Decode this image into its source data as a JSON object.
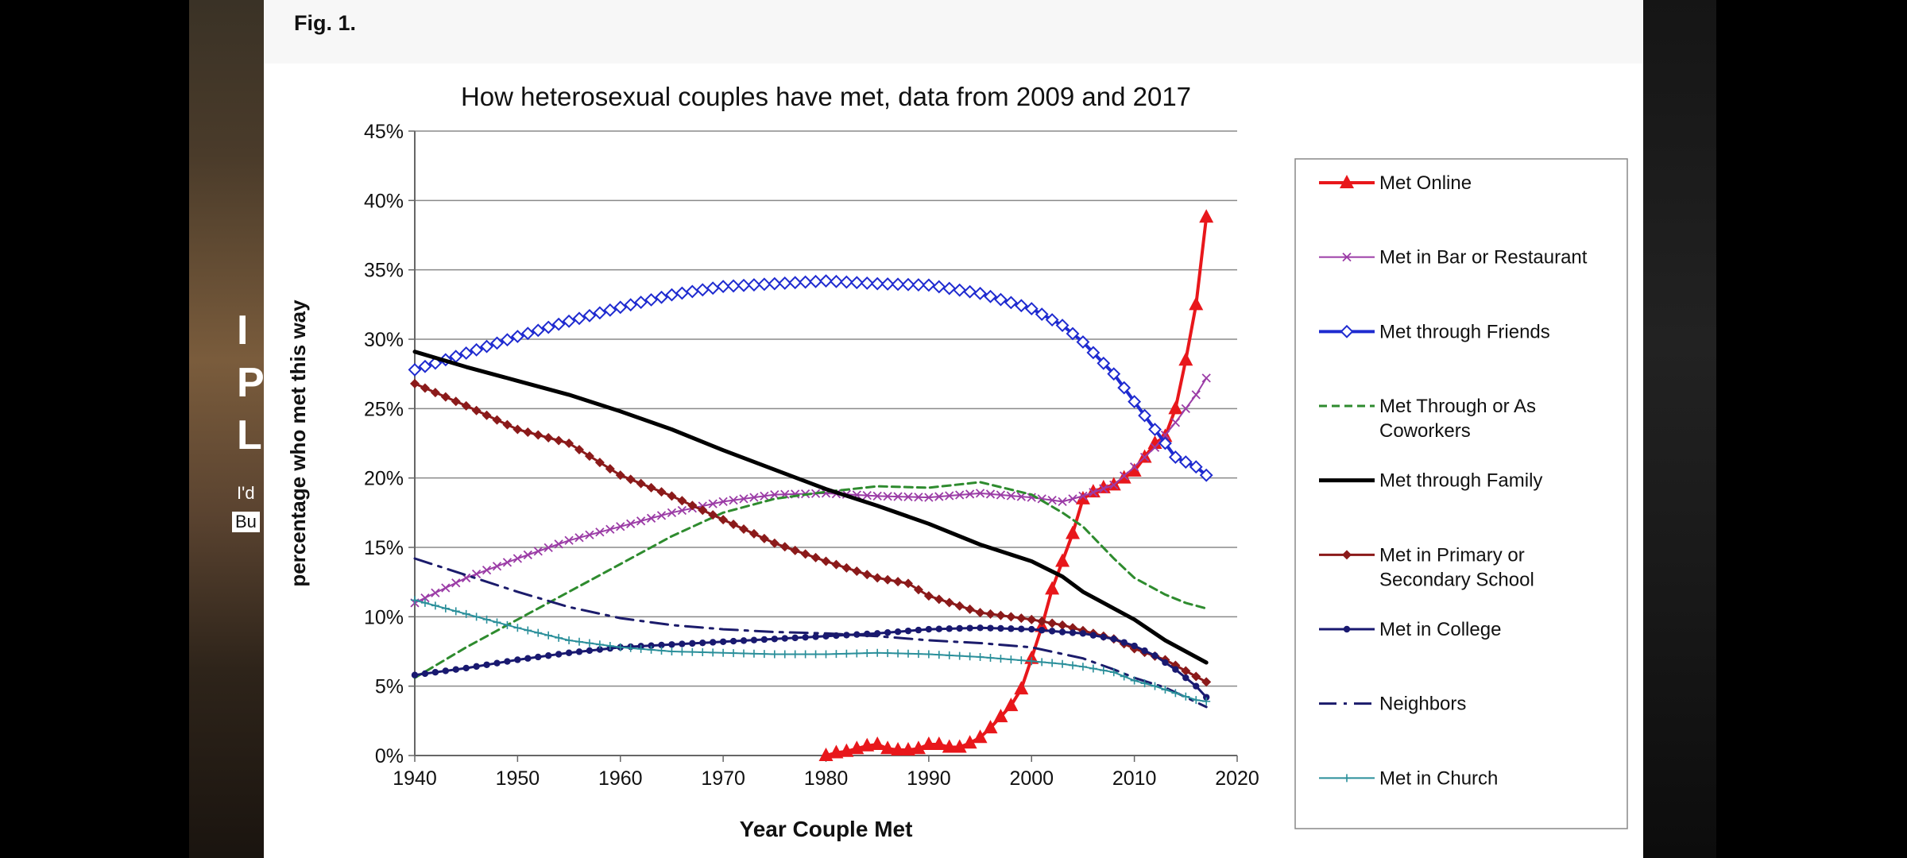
{
  "figure_label": "Fig. 1.",
  "background_fragments": {
    "line1": "I",
    "line2": "P",
    "line3": "L",
    "small1": "I'd",
    "small2": "Bu"
  },
  "chart_data": {
    "type": "line",
    "title": "How heterosexual couples have met, data from 2009 and 2017",
    "xlabel": "Year Couple Met",
    "ylabel": "percentage who met this way",
    "xlim": [
      1940,
      2020
    ],
    "ylim": [
      0,
      45
    ],
    "x_ticks": [
      "1940",
      "1950",
      "1960",
      "1970",
      "1980",
      "1990",
      "2000",
      "2010",
      "2020"
    ],
    "y_ticks": [
      "0%",
      "5%",
      "10%",
      "15%",
      "20%",
      "25%",
      "30%",
      "35%",
      "40%",
      "45%"
    ],
    "grid": "horizontal",
    "legend_position": "right",
    "series": [
      {
        "name": "Met Online",
        "legend": [
          "Met Online"
        ],
        "color": "#e8171b",
        "width": 4,
        "marker": "triangle",
        "marker_step": 1,
        "points": [
          [
            1980,
            0
          ],
          [
            1981,
            0.2
          ],
          [
            1982,
            0.3
          ],
          [
            1983,
            0.5
          ],
          [
            1984,
            0.7
          ],
          [
            1985,
            0.8
          ],
          [
            1986,
            0.5
          ],
          [
            1987,
            0.4
          ],
          [
            1988,
            0.4
          ],
          [
            1989,
            0.5
          ],
          [
            1990,
            0.8
          ],
          [
            1991,
            0.8
          ],
          [
            1992,
            0.6
          ],
          [
            1993,
            0.6
          ],
          [
            1994,
            0.9
          ],
          [
            1995,
            1.3
          ],
          [
            1996,
            2
          ],
          [
            1997,
            2.8
          ],
          [
            1998,
            3.6
          ],
          [
            1999,
            4.8
          ],
          [
            2000,
            7
          ],
          [
            2001,
            9.3
          ],
          [
            2002,
            12
          ],
          [
            2003,
            14
          ],
          [
            2004,
            16
          ],
          [
            2005,
            18.5
          ],
          [
            2006,
            19
          ],
          [
            2007,
            19.3
          ],
          [
            2008,
            19.5
          ],
          [
            2009,
            20
          ],
          [
            2010,
            20.5
          ],
          [
            2011,
            21.5
          ],
          [
            2012,
            22.5
          ],
          [
            2013,
            23
          ],
          [
            2014,
            25
          ],
          [
            2015,
            28.5
          ],
          [
            2016,
            32.5
          ],
          [
            2017,
            38.8
          ]
        ]
      },
      {
        "name": "Met in Bar or Restaurant",
        "legend": [
          "Met in Bar or Restaurant"
        ],
        "color": "#9b3ca6",
        "width": 2,
        "marker": "x",
        "marker_step": 1,
        "points": [
          [
            1940,
            11
          ],
          [
            1945,
            12.8
          ],
          [
            1950,
            14.2
          ],
          [
            1955,
            15.5
          ],
          [
            1960,
            16.5
          ],
          [
            1965,
            17.5
          ],
          [
            1970,
            18.3
          ],
          [
            1975,
            18.8
          ],
          [
            1980,
            18.9
          ],
          [
            1985,
            18.7
          ],
          [
            1990,
            18.6
          ],
          [
            1995,
            18.9
          ],
          [
            2000,
            18.6
          ],
          [
            2003,
            18.3
          ],
          [
            2005,
            18.7
          ],
          [
            2008,
            19.5
          ],
          [
            2010,
            20.8
          ],
          [
            2012,
            22.2
          ],
          [
            2014,
            24
          ],
          [
            2015,
            25
          ],
          [
            2016,
            26
          ],
          [
            2017,
            27.2
          ]
        ]
      },
      {
        "name": "Met through Friends",
        "legend": [
          "Met through Friends"
        ],
        "color": "#1f2bd0",
        "width": 4,
        "marker": "diamond-open",
        "marker_step": 1,
        "points": [
          [
            1940,
            27.8
          ],
          [
            1945,
            29
          ],
          [
            1950,
            30.2
          ],
          [
            1955,
            31.3
          ],
          [
            1960,
            32.3
          ],
          [
            1965,
            33.2
          ],
          [
            1970,
            33.8
          ],
          [
            1975,
            34
          ],
          [
            1980,
            34.2
          ],
          [
            1985,
            34
          ],
          [
            1990,
            33.9
          ],
          [
            1995,
            33.3
          ],
          [
            2000,
            32.2
          ],
          [
            2003,
            31
          ],
          [
            2005,
            29.8
          ],
          [
            2008,
            27.5
          ],
          [
            2010,
            25.5
          ],
          [
            2012,
            23.5
          ],
          [
            2014,
            21.5
          ],
          [
            2016,
            20.8
          ],
          [
            2017,
            20.2
          ]
        ]
      },
      {
        "name": "Met Through or As Coworkers",
        "legend": [
          "Met Through or As",
          "Coworkers"
        ],
        "color": "#2e8b2e",
        "width": 3,
        "dash": "10,6",
        "points": [
          [
            1940,
            5.6
          ],
          [
            1945,
            7.8
          ],
          [
            1950,
            9.8
          ],
          [
            1955,
            11.8
          ],
          [
            1960,
            13.8
          ],
          [
            1965,
            15.8
          ],
          [
            1970,
            17.5
          ],
          [
            1975,
            18.5
          ],
          [
            1980,
            19
          ],
          [
            1985,
            19.4
          ],
          [
            1990,
            19.3
          ],
          [
            1995,
            19.7
          ],
          [
            2000,
            18.8
          ],
          [
            2003,
            17.5
          ],
          [
            2005,
            16.5
          ],
          [
            2008,
            14.2
          ],
          [
            2010,
            12.8
          ],
          [
            2013,
            11.6
          ],
          [
            2015,
            11
          ],
          [
            2017,
            10.6
          ]
        ]
      },
      {
        "name": "Met through Family",
        "legend": [
          "Met through Family"
        ],
        "color": "#000000",
        "width": 5,
        "points": [
          [
            1940,
            29.1
          ],
          [
            1945,
            28
          ],
          [
            1950,
            27
          ],
          [
            1955,
            26
          ],
          [
            1960,
            24.8
          ],
          [
            1965,
            23.5
          ],
          [
            1970,
            22
          ],
          [
            1975,
            20.6
          ],
          [
            1980,
            19.2
          ],
          [
            1985,
            18
          ],
          [
            1990,
            16.7
          ],
          [
            1995,
            15.2
          ],
          [
            2000,
            14
          ],
          [
            2003,
            12.9
          ],
          [
            2005,
            11.8
          ],
          [
            2008,
            10.6
          ],
          [
            2010,
            9.8
          ],
          [
            2013,
            8.3
          ],
          [
            2015,
            7.5
          ],
          [
            2017,
            6.7
          ]
        ]
      },
      {
        "name": "Met in Primary or Secondary School",
        "legend": [
          "Met in Primary or",
          "Secondary School"
        ],
        "color": "#8b1a1a",
        "width": 3,
        "marker": "diamond",
        "marker_step": 1,
        "points": [
          [
            1940,
            26.8
          ],
          [
            1945,
            25.2
          ],
          [
            1950,
            23.5
          ],
          [
            1955,
            22.5
          ],
          [
            1960,
            20.2
          ],
          [
            1965,
            18.7
          ],
          [
            1970,
            17
          ],
          [
            1975,
            15.3
          ],
          [
            1980,
            14
          ],
          [
            1985,
            12.8
          ],
          [
            1988,
            12.4
          ],
          [
            1990,
            11.5
          ],
          [
            1995,
            10.3
          ],
          [
            2000,
            9.8
          ],
          [
            2003,
            9.4
          ],
          [
            2005,
            9
          ],
          [
            2008,
            8.4
          ],
          [
            2010,
            7.7
          ],
          [
            2013,
            6.9
          ],
          [
            2015,
            6.1
          ],
          [
            2017,
            5.3
          ]
        ]
      },
      {
        "name": "Met in College",
        "legend": [
          "Met in College"
        ],
        "color": "#191970",
        "width": 3,
        "marker": "dot",
        "marker_step": 1,
        "points": [
          [
            1940,
            5.8
          ],
          [
            1945,
            6.3
          ],
          [
            1950,
            6.9
          ],
          [
            1955,
            7.4
          ],
          [
            1960,
            7.8
          ],
          [
            1965,
            8
          ],
          [
            1970,
            8.2
          ],
          [
            1975,
            8.4
          ],
          [
            1980,
            8.6
          ],
          [
            1985,
            8.8
          ],
          [
            1990,
            9.1
          ],
          [
            1995,
            9.2
          ],
          [
            2000,
            9.1
          ],
          [
            2003,
            8.9
          ],
          [
            2005,
            8.8
          ],
          [
            2008,
            8.4
          ],
          [
            2010,
            7.9
          ],
          [
            2012,
            7.2
          ],
          [
            2014,
            6.2
          ],
          [
            2016,
            5
          ],
          [
            2017,
            4.2
          ]
        ]
      },
      {
        "name": "Neighbors",
        "legend": [
          "Neighbors"
        ],
        "color": "#1b1b6b",
        "width": 3,
        "dash": "22,9,4,9",
        "points": [
          [
            1940,
            14.2
          ],
          [
            1945,
            13
          ],
          [
            1950,
            11.8
          ],
          [
            1955,
            10.7
          ],
          [
            1960,
            9.9
          ],
          [
            1965,
            9.4
          ],
          [
            1970,
            9.1
          ],
          [
            1975,
            8.9
          ],
          [
            1980,
            8.8
          ],
          [
            1985,
            8.6
          ],
          [
            1990,
            8.3
          ],
          [
            1995,
            8.1
          ],
          [
            2000,
            7.8
          ],
          [
            2005,
            7
          ],
          [
            2008,
            6.2
          ],
          [
            2010,
            5.6
          ],
          [
            2013,
            4.9
          ],
          [
            2015,
            4.2
          ],
          [
            2017,
            3.5
          ]
        ]
      },
      {
        "name": "Met in Church",
        "legend": [
          "Met in Church"
        ],
        "color": "#2a8f9a",
        "width": 2,
        "marker": "plus",
        "marker_step": 1,
        "points": [
          [
            1940,
            11.2
          ],
          [
            1945,
            10.2
          ],
          [
            1950,
            9.2
          ],
          [
            1955,
            8.3
          ],
          [
            1960,
            7.8
          ],
          [
            1965,
            7.5
          ],
          [
            1970,
            7.4
          ],
          [
            1975,
            7.3
          ],
          [
            1980,
            7.3
          ],
          [
            1985,
            7.4
          ],
          [
            1990,
            7.3
          ],
          [
            1995,
            7.1
          ],
          [
            2000,
            6.8
          ],
          [
            2003,
            6.6
          ],
          [
            2005,
            6.4
          ],
          [
            2008,
            6
          ],
          [
            2010,
            5.4
          ],
          [
            2012,
            5
          ],
          [
            2014,
            4.5
          ],
          [
            2016,
            4
          ],
          [
            2017,
            3.9
          ]
        ]
      }
    ]
  }
}
